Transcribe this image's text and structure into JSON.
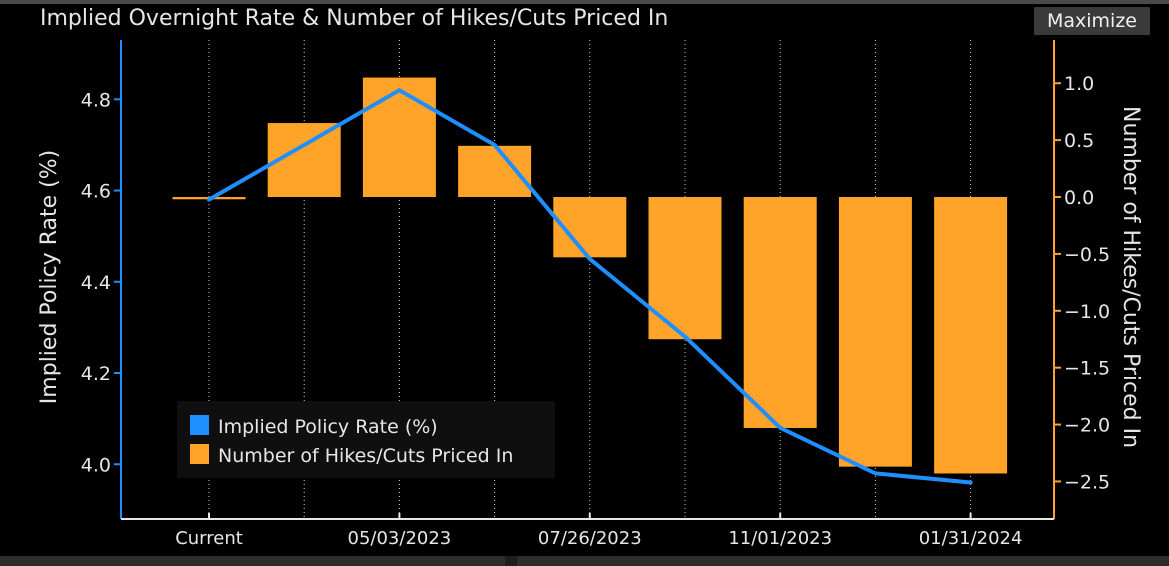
{
  "header": {
    "title": "Implied Overnight Rate & Number of Hikes/Cuts Priced In",
    "maximize_label": "Maximize"
  },
  "chart_data": {
    "type": "bar+line",
    "categories": [
      "Current",
      "",
      "05/03/2023",
      "",
      "07/26/2023",
      "",
      "11/01/2023",
      "",
      "01/31/2024"
    ],
    "series": [
      {
        "name": "Implied Policy Rate (%)",
        "type": "line",
        "axis": "left",
        "color": "#1f8fff",
        "values": [
          4.58,
          4.7,
          4.82,
          4.7,
          4.45,
          4.28,
          4.08,
          3.98,
          3.96
        ]
      },
      {
        "name": "Number of Hikes/Cuts Priced In",
        "type": "bar",
        "axis": "right",
        "color": "#ffa329",
        "values": [
          -0.02,
          0.65,
          1.05,
          0.45,
          -0.53,
          -1.25,
          -2.03,
          -2.37,
          -2.43
        ]
      }
    ],
    "yleft": {
      "label": "Implied Policy Rate (%)",
      "ticks": [
        4.0,
        4.2,
        4.4,
        4.6,
        4.8
      ],
      "tick_labels": [
        "4.0",
        "4.2",
        "4.4",
        "4.6",
        "4.8"
      ],
      "range": [
        3.88,
        4.93
      ]
    },
    "yright": {
      "label": "Number of Hikes/Cuts Priced In",
      "ticks": [
        1.0,
        0.5,
        0.0,
        -0.5,
        -1.0,
        -1.5,
        -2.0,
        -2.5
      ],
      "tick_labels": [
        "1.0",
        "0.5",
        "0.0",
        "-0.5",
        "-1.0",
        "-1.5",
        "-2.0",
        "-2.5"
      ],
      "range": [
        -2.83,
        1.38
      ]
    },
    "x_tick_labels": [
      "Current",
      "05/03/2023",
      "07/26/2023",
      "11/01/2023",
      "01/31/2024"
    ],
    "x_tick_indices": [
      0,
      2,
      4,
      6,
      8
    ],
    "grid": "vertical-dotted",
    "legend": "bottom-left"
  }
}
